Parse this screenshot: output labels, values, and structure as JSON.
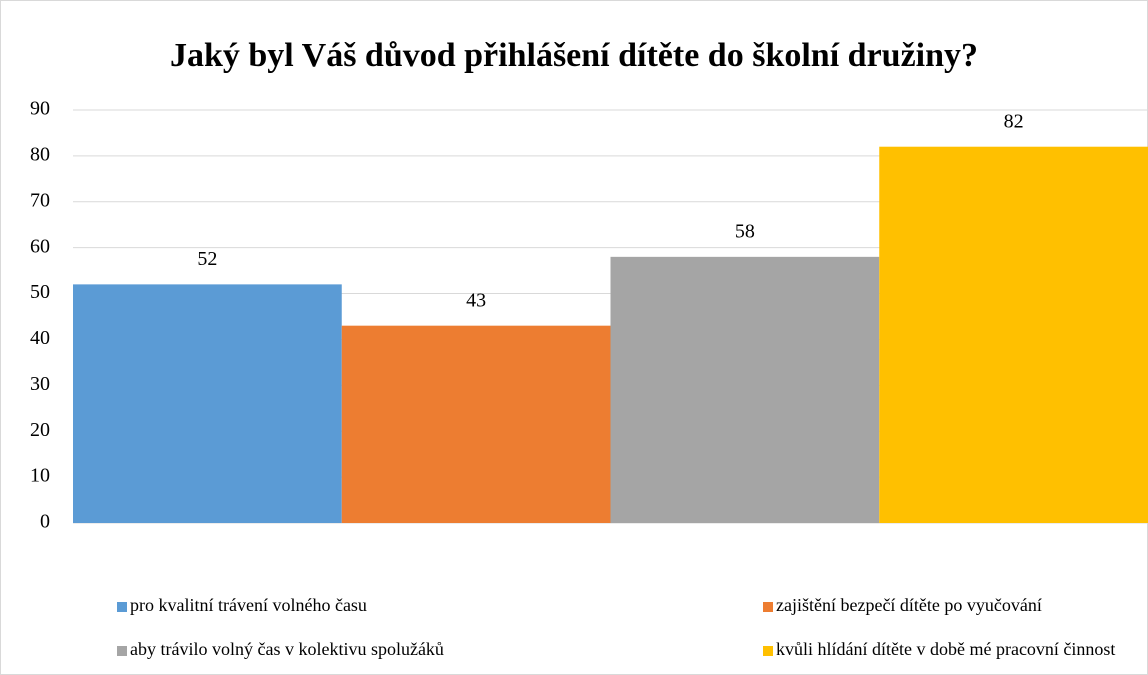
{
  "chart_data": {
    "type": "bar",
    "title": "Jaký byl Váš důvod přihlášení dítěte do školní družiny?",
    "categories": [
      null
    ],
    "series": [
      {
        "name": "pro kvalitní trávení volného času",
        "color": "#5b9bd5",
        "values": [
          52
        ]
      },
      {
        "name": "zajištění bezpečí dítěte po vyučování",
        "color": "#ed7d31",
        "values": [
          43
        ]
      },
      {
        "name": "aby trávilo volný čas v kolektivu spolužáků",
        "color": "#a5a5a5",
        "values": [
          58
        ]
      },
      {
        "name": "kvůli hlídání dítěte v době mé pracovní činnost",
        "color": "#ffc000",
        "values": [
          82
        ]
      }
    ],
    "ylim": [
      0,
      90
    ],
    "yticks": [
      0,
      10,
      20,
      30,
      40,
      50,
      60,
      70,
      80,
      90
    ],
    "grid": true,
    "legend": "bottom"
  }
}
